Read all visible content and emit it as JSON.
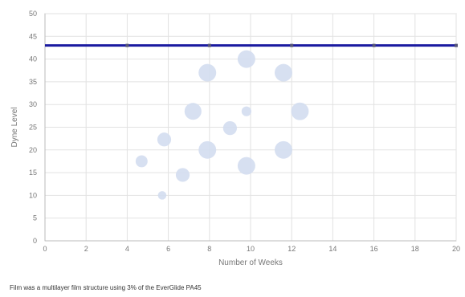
{
  "chart_data": {
    "type": "scatter",
    "style": "bubble",
    "xlabel": "Number of Weeks",
    "ylabel": "Dyne Level",
    "xlim": [
      0,
      20
    ],
    "ylim": [
      0,
      50
    ],
    "x_ticks": [
      0,
      2,
      4,
      6,
      8,
      10,
      12,
      14,
      16,
      18,
      20
    ],
    "y_ticks": [
      0,
      5,
      10,
      15,
      20,
      25,
      30,
      35,
      40,
      45,
      50
    ],
    "grid": true,
    "legend": "none",
    "bubble_color": "#d3ddf0",
    "reference_line": {
      "y": 43,
      "x_range": [
        0,
        20
      ],
      "color": "#1a1aa0",
      "marker_x": [
        4,
        8,
        12,
        16,
        20
      ]
    },
    "series": [
      {
        "points": [
          {
            "x": 4.7,
            "y": 17.5,
            "size": 3
          },
          {
            "x": 5.7,
            "y": 10,
            "size": 1.5
          },
          {
            "x": 5.8,
            "y": 22.3,
            "size": 4
          },
          {
            "x": 6.7,
            "y": 14.5,
            "size": 4
          },
          {
            "x": 7.2,
            "y": 28.5,
            "size": 6
          },
          {
            "x": 7.9,
            "y": 37,
            "size": 6.5
          },
          {
            "x": 7.9,
            "y": 20,
            "size": 6.5
          },
          {
            "x": 9.0,
            "y": 24.8,
            "size": 4
          },
          {
            "x": 9.8,
            "y": 40,
            "size": 6.5
          },
          {
            "x": 9.8,
            "y": 28.5,
            "size": 2
          },
          {
            "x": 9.8,
            "y": 16.5,
            "size": 6.5
          },
          {
            "x": 11.6,
            "y": 37,
            "size": 6.5
          },
          {
            "x": 11.6,
            "y": 20,
            "size": 6.5
          },
          {
            "x": 12.4,
            "y": 28.5,
            "size": 6.5
          }
        ]
      }
    ]
  },
  "footnote": "Film was a multilayer film structure using 3% of the EverGlide PA45"
}
